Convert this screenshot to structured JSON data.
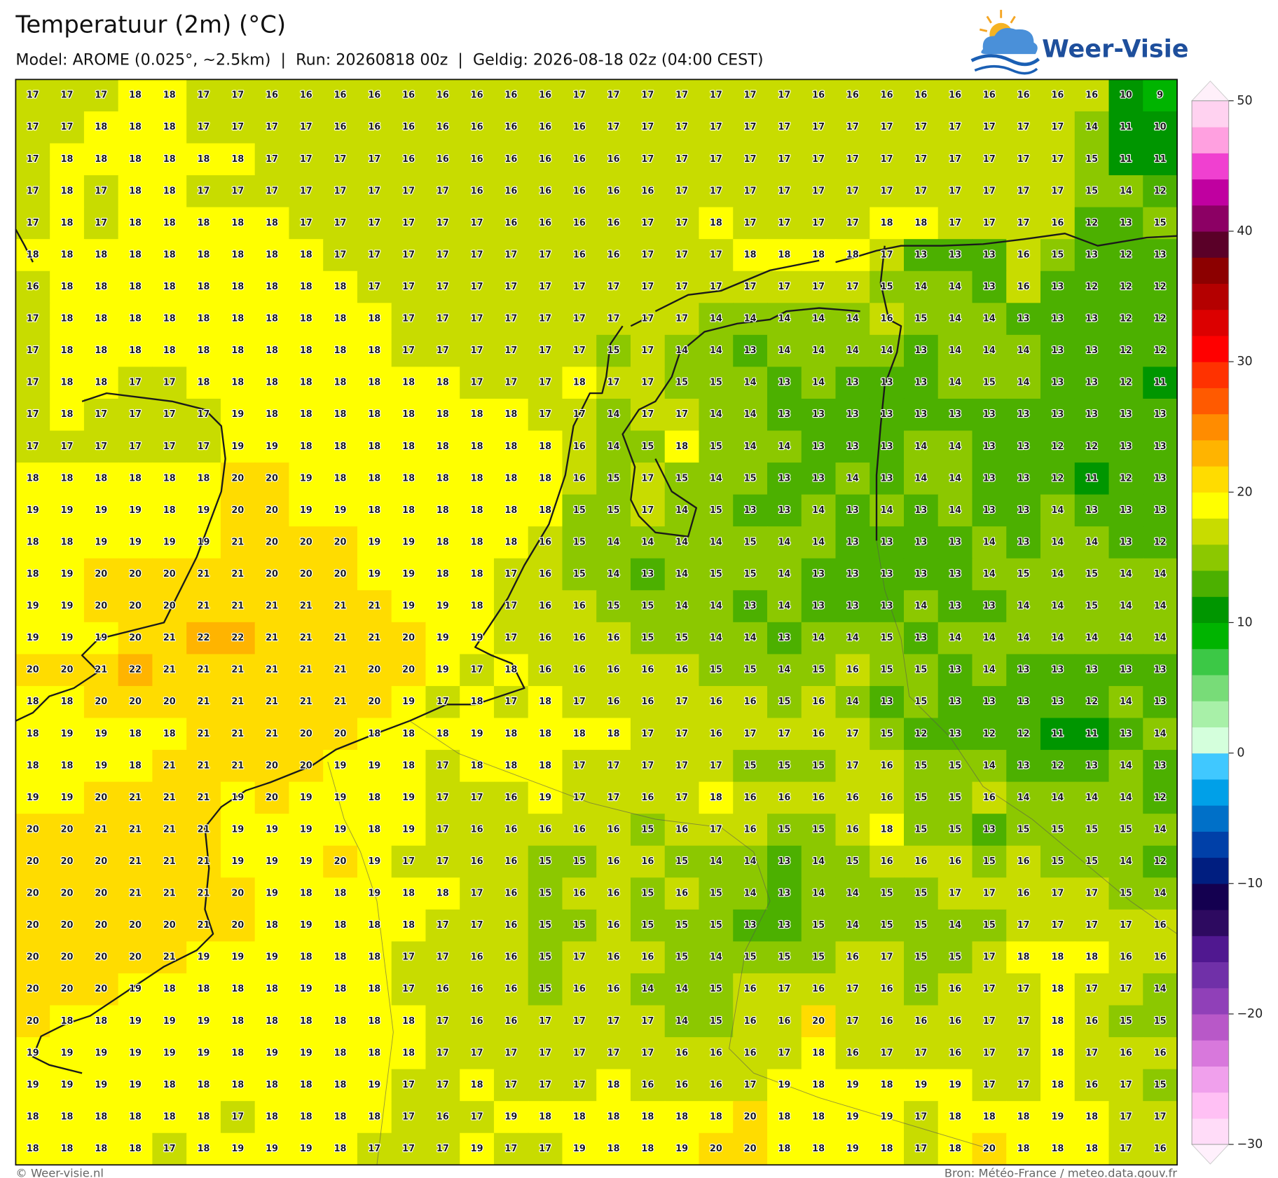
{
  "header": {
    "title": "Temperatuur (2m) (°C)",
    "subtitle": "Model: AROME (0.025°, ~2.5km)  |  Run: 20260818 00z  |  Geldig: 2026-08-18 02z (04:00 CEST)"
  },
  "logo": {
    "text": "Weer-Visie"
  },
  "map": {
    "values": [
      [
        17,
        17,
        17,
        18,
        18,
        17,
        17,
        16,
        16,
        16,
        16,
        16,
        16,
        16,
        16,
        16,
        17,
        17,
        17,
        17,
        17,
        17,
        17,
        16,
        16,
        16,
        16,
        16,
        16,
        16,
        16,
        16,
        10,
        9
      ],
      [
        17,
        17,
        18,
        18,
        18,
        17,
        17,
        17,
        17,
        16,
        16,
        16,
        16,
        16,
        16,
        16,
        16,
        17,
        17,
        17,
        17,
        17,
        17,
        17,
        17,
        17,
        17,
        17,
        17,
        17,
        17,
        14,
        11,
        10
      ],
      [
        17,
        18,
        18,
        18,
        18,
        18,
        18,
        17,
        17,
        17,
        17,
        16,
        16,
        16,
        16,
        16,
        16,
        16,
        17,
        17,
        17,
        17,
        17,
        17,
        17,
        17,
        17,
        17,
        17,
        17,
        17,
        15,
        11,
        11
      ],
      [
        17,
        18,
        17,
        18,
        18,
        17,
        17,
        17,
        17,
        17,
        17,
        17,
        17,
        16,
        16,
        16,
        16,
        16,
        16,
        17,
        17,
        17,
        17,
        17,
        17,
        17,
        17,
        17,
        17,
        17,
        17,
        15,
        14,
        12
      ],
      [
        17,
        18,
        17,
        18,
        18,
        18,
        18,
        18,
        17,
        17,
        17,
        17,
        17,
        17,
        16,
        16,
        16,
        16,
        17,
        17,
        18,
        17,
        17,
        17,
        17,
        18,
        18,
        17,
        17,
        17,
        16,
        12,
        13,
        15
      ],
      [
        18,
        18,
        18,
        18,
        18,
        18,
        18,
        18,
        18,
        17,
        17,
        17,
        17,
        17,
        17,
        17,
        16,
        16,
        17,
        17,
        17,
        18,
        18,
        18,
        18,
        17,
        13,
        13,
        13,
        16,
        15,
        13,
        12,
        13
      ],
      [
        16,
        18,
        18,
        18,
        18,
        18,
        18,
        18,
        18,
        18,
        17,
        17,
        17,
        17,
        17,
        17,
        17,
        17,
        17,
        17,
        17,
        17,
        17,
        17,
        17,
        15,
        14,
        14,
        13,
        16,
        13,
        12,
        12,
        12
      ],
      [
        17,
        18,
        18,
        18,
        18,
        18,
        18,
        18,
        18,
        18,
        18,
        17,
        17,
        17,
        17,
        17,
        17,
        17,
        17,
        17,
        14,
        14,
        14,
        14,
        14,
        16,
        15,
        14,
        14,
        13,
        13,
        13,
        12,
        12
      ],
      [
        17,
        18,
        18,
        18,
        18,
        18,
        18,
        18,
        18,
        18,
        18,
        17,
        17,
        17,
        17,
        17,
        17,
        15,
        17,
        14,
        14,
        13,
        14,
        14,
        14,
        14,
        13,
        14,
        14,
        14,
        13,
        13,
        12,
        12
      ],
      [
        17,
        18,
        18,
        17,
        17,
        18,
        18,
        18,
        18,
        18,
        18,
        18,
        18,
        17,
        17,
        17,
        18,
        17,
        17,
        15,
        15,
        14,
        13,
        14,
        13,
        13,
        13,
        14,
        15,
        14,
        13,
        13,
        12,
        11
      ],
      [
        17,
        18,
        17,
        17,
        17,
        17,
        19,
        18,
        18,
        18,
        18,
        18,
        18,
        18,
        18,
        17,
        17,
        14,
        17,
        17,
        14,
        14,
        13,
        13,
        13,
        13,
        13,
        13,
        13,
        13,
        13,
        13,
        13,
        13
      ],
      [
        17,
        17,
        17,
        17,
        17,
        17,
        19,
        19,
        18,
        18,
        18,
        18,
        18,
        18,
        18,
        18,
        16,
        14,
        15,
        18,
        15,
        14,
        14,
        13,
        13,
        13,
        14,
        14,
        13,
        13,
        12,
        12,
        13,
        13
      ],
      [
        18,
        18,
        18,
        18,
        18,
        18,
        20,
        20,
        19,
        18,
        18,
        18,
        18,
        18,
        18,
        18,
        16,
        15,
        17,
        15,
        14,
        15,
        13,
        13,
        14,
        13,
        14,
        14,
        13,
        13,
        12,
        11,
        12,
        13
      ],
      [
        19,
        19,
        19,
        19,
        18,
        19,
        20,
        20,
        19,
        19,
        18,
        18,
        18,
        18,
        18,
        18,
        15,
        15,
        17,
        14,
        15,
        13,
        13,
        14,
        13,
        14,
        13,
        14,
        13,
        13,
        14,
        13,
        13,
        13
      ],
      [
        18,
        18,
        19,
        19,
        19,
        19,
        21,
        20,
        20,
        20,
        19,
        19,
        18,
        18,
        18,
        16,
        15,
        14,
        14,
        14,
        14,
        15,
        14,
        14,
        13,
        13,
        13,
        13,
        14,
        13,
        14,
        14,
        13,
        12
      ],
      [
        18,
        19,
        20,
        20,
        20,
        21,
        21,
        20,
        20,
        20,
        19,
        19,
        18,
        18,
        17,
        16,
        15,
        14,
        13,
        14,
        15,
        15,
        14,
        13,
        13,
        13,
        13,
        13,
        14,
        15,
        14,
        15,
        14,
        14
      ],
      [
        19,
        19,
        20,
        20,
        20,
        21,
        21,
        21,
        21,
        21,
        21,
        19,
        19,
        18,
        17,
        16,
        16,
        15,
        15,
        14,
        14,
        13,
        14,
        13,
        13,
        13,
        14,
        13,
        13,
        14,
        14,
        15,
        14,
        14
      ],
      [
        19,
        19,
        19,
        20,
        21,
        22,
        22,
        21,
        21,
        21,
        21,
        20,
        19,
        19,
        17,
        16,
        16,
        16,
        15,
        15,
        14,
        14,
        13,
        14,
        14,
        15,
        13,
        14,
        14,
        14,
        14,
        14,
        14,
        14
      ],
      [
        20,
        20,
        21,
        22,
        21,
        21,
        21,
        21,
        21,
        21,
        20,
        20,
        19,
        17,
        18,
        16,
        16,
        16,
        16,
        16,
        15,
        15,
        14,
        15,
        16,
        15,
        15,
        13,
        14,
        13,
        13,
        13,
        13,
        13
      ],
      [
        18,
        18,
        20,
        20,
        20,
        21,
        21,
        21,
        21,
        21,
        20,
        19,
        17,
        18,
        17,
        18,
        17,
        16,
        16,
        17,
        16,
        16,
        15,
        16,
        14,
        13,
        15,
        13,
        13,
        13,
        13,
        12,
        14,
        13
      ],
      [
        18,
        19,
        19,
        18,
        18,
        21,
        21,
        21,
        20,
        20,
        18,
        18,
        18,
        19,
        18,
        18,
        18,
        18,
        17,
        17,
        16,
        17,
        17,
        16,
        17,
        15,
        12,
        13,
        12,
        12,
        11,
        11,
        13,
        14
      ],
      [
        18,
        18,
        19,
        18,
        21,
        21,
        21,
        20,
        20,
        19,
        19,
        18,
        17,
        18,
        18,
        18,
        17,
        17,
        17,
        17,
        17,
        15,
        15,
        15,
        17,
        16,
        15,
        15,
        14,
        13,
        12,
        13,
        14,
        13
      ],
      [
        19,
        19,
        20,
        21,
        21,
        21,
        19,
        20,
        19,
        19,
        18,
        19,
        17,
        17,
        16,
        19,
        17,
        17,
        16,
        17,
        18,
        16,
        16,
        16,
        16,
        16,
        15,
        15,
        16,
        14,
        14,
        14,
        14,
        12
      ],
      [
        20,
        20,
        21,
        21,
        21,
        21,
        19,
        19,
        19,
        19,
        18,
        19,
        17,
        16,
        16,
        16,
        16,
        16,
        15,
        16,
        17,
        16,
        15,
        15,
        16,
        18,
        15,
        15,
        13,
        15,
        15,
        15,
        15,
        14
      ],
      [
        20,
        20,
        20,
        21,
        21,
        21,
        19,
        19,
        19,
        20,
        19,
        17,
        17,
        16,
        16,
        15,
        15,
        16,
        16,
        15,
        14,
        14,
        13,
        14,
        15,
        16,
        16,
        16,
        15,
        16,
        15,
        15,
        14,
        12
      ],
      [
        20,
        20,
        20,
        21,
        21,
        21,
        20,
        19,
        18,
        18,
        19,
        18,
        18,
        17,
        16,
        15,
        16,
        16,
        15,
        16,
        15,
        14,
        13,
        14,
        14,
        15,
        15,
        17,
        17,
        16,
        17,
        17,
        15,
        14
      ],
      [
        20,
        20,
        20,
        20,
        20,
        21,
        20,
        18,
        19,
        18,
        18,
        18,
        17,
        17,
        16,
        15,
        15,
        16,
        15,
        15,
        15,
        13,
        13,
        15,
        14,
        15,
        15,
        14,
        15,
        17,
        17,
        17,
        17,
        16
      ],
      [
        20,
        20,
        20,
        20,
        21,
        19,
        19,
        19,
        18,
        18,
        18,
        17,
        17,
        16,
        16,
        15,
        17,
        16,
        16,
        15,
        14,
        15,
        15,
        15,
        16,
        17,
        15,
        15,
        17,
        18,
        18,
        18,
        16,
        16
      ],
      [
        20,
        20,
        20,
        19,
        18,
        18,
        18,
        18,
        19,
        18,
        18,
        17,
        16,
        16,
        16,
        15,
        16,
        16,
        14,
        14,
        15,
        16,
        17,
        16,
        17,
        16,
        15,
        16,
        17,
        17,
        18,
        17,
        17,
        14
      ],
      [
        20,
        18,
        18,
        19,
        19,
        19,
        18,
        18,
        18,
        18,
        18,
        18,
        17,
        16,
        16,
        17,
        17,
        17,
        17,
        14,
        15,
        16,
        16,
        20,
        17,
        16,
        16,
        16,
        17,
        17,
        18,
        16,
        15,
        15
      ],
      [
        19,
        19,
        19,
        19,
        19,
        19,
        18,
        19,
        19,
        18,
        18,
        18,
        17,
        17,
        17,
        17,
        17,
        17,
        17,
        16,
        16,
        16,
        17,
        18,
        16,
        17,
        17,
        16,
        17,
        17,
        18,
        17,
        16,
        16
      ],
      [
        19,
        19,
        19,
        19,
        18,
        18,
        18,
        18,
        18,
        18,
        19,
        17,
        17,
        18,
        17,
        17,
        17,
        18,
        16,
        16,
        16,
        17,
        19,
        18,
        19,
        18,
        19,
        19,
        17,
        17,
        18,
        16,
        17,
        15
      ],
      [
        18,
        18,
        18,
        18,
        18,
        18,
        17,
        18,
        18,
        18,
        18,
        17,
        16,
        17,
        19,
        18,
        18,
        18,
        18,
        18,
        18,
        20,
        18,
        18,
        19,
        19,
        17,
        18,
        18,
        18,
        19,
        18,
        17,
        17
      ],
      [
        18,
        18,
        18,
        18,
        17,
        18,
        19,
        19,
        19,
        18,
        17,
        17,
        17,
        19,
        17,
        17,
        19,
        18,
        18,
        19,
        20,
        20,
        18,
        18,
        19,
        18,
        17,
        18,
        20,
        18,
        18,
        18,
        17,
        16
      ]
    ]
  },
  "colorbar": {
    "lim": [
      -30,
      50
    ],
    "ticks": [
      50,
      40,
      30,
      20,
      10,
      0,
      {
        "value": -10,
        "label": "−10"
      },
      {
        "value": -20,
        "label": "−20"
      },
      {
        "value": -30,
        "label": "−30"
      }
    ],
    "colors": [
      "#ffdcf8",
      "#ffc0f4",
      "#f0a0ec",
      "#d878dc",
      "#b858c8",
      "#9040b8",
      "#7030a8",
      "#501890",
      "#2d0a60",
      "#140050",
      "#001e80",
      "#0040a8",
      "#0070c8",
      "#00a0e8",
      "#40c8ff",
      "#d4ffdc",
      "#a8f0a8",
      "#78dc78",
      "#3cc846",
      "#00b400",
      "#009600",
      "#4cb000",
      "#8cc800",
      "#c8dc00",
      "#ffff00",
      "#ffdc00",
      "#ffb400",
      "#ff8c00",
      "#ff5a00",
      "#ff3200",
      "#ff0000",
      "#dc0000",
      "#b40000",
      "#8c0000",
      "#5a0028",
      "#8c0064",
      "#c000a0",
      "#f040d0",
      "#ffa0e0",
      "#ffd2f0"
    ],
    "extend_colors": [
      "#fff0fc",
      "#fff0fa"
    ]
  },
  "footer": {
    "left": "© Weer-visie.nl",
    "right": "Bron: Météo-France / meteo.data.gouv.fr"
  }
}
